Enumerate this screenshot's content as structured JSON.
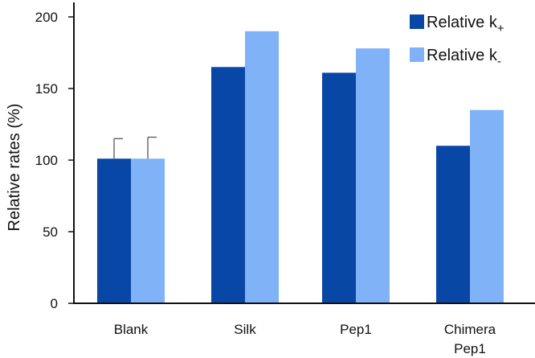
{
  "chart_data": {
    "type": "bar",
    "categories": [
      "Blank",
      "Silk",
      "Pep1",
      "Chimera\nPep1"
    ],
    "series": [
      {
        "name": "Relative k+",
        "name_base": "Relative k",
        "name_sub": "+",
        "color": "#0847a6",
        "values": [
          101,
          165,
          161,
          110
        ],
        "errors": [
          14,
          null,
          null,
          null
        ]
      },
      {
        "name": "Relative k-",
        "name_base": "Relative k",
        "name_sub": "-",
        "color": "#7fb2f7",
        "values": [
          101,
          190,
          178,
          135
        ],
        "errors": [
          15,
          null,
          null,
          null
        ]
      }
    ],
    "ylabel": "Relative rates (%)",
    "xlabel": "",
    "title": "",
    "ylim": [
      0,
      200
    ],
    "yticks": [
      0,
      50,
      100,
      150,
      200
    ],
    "legend": "top-right",
    "grid": false
  }
}
